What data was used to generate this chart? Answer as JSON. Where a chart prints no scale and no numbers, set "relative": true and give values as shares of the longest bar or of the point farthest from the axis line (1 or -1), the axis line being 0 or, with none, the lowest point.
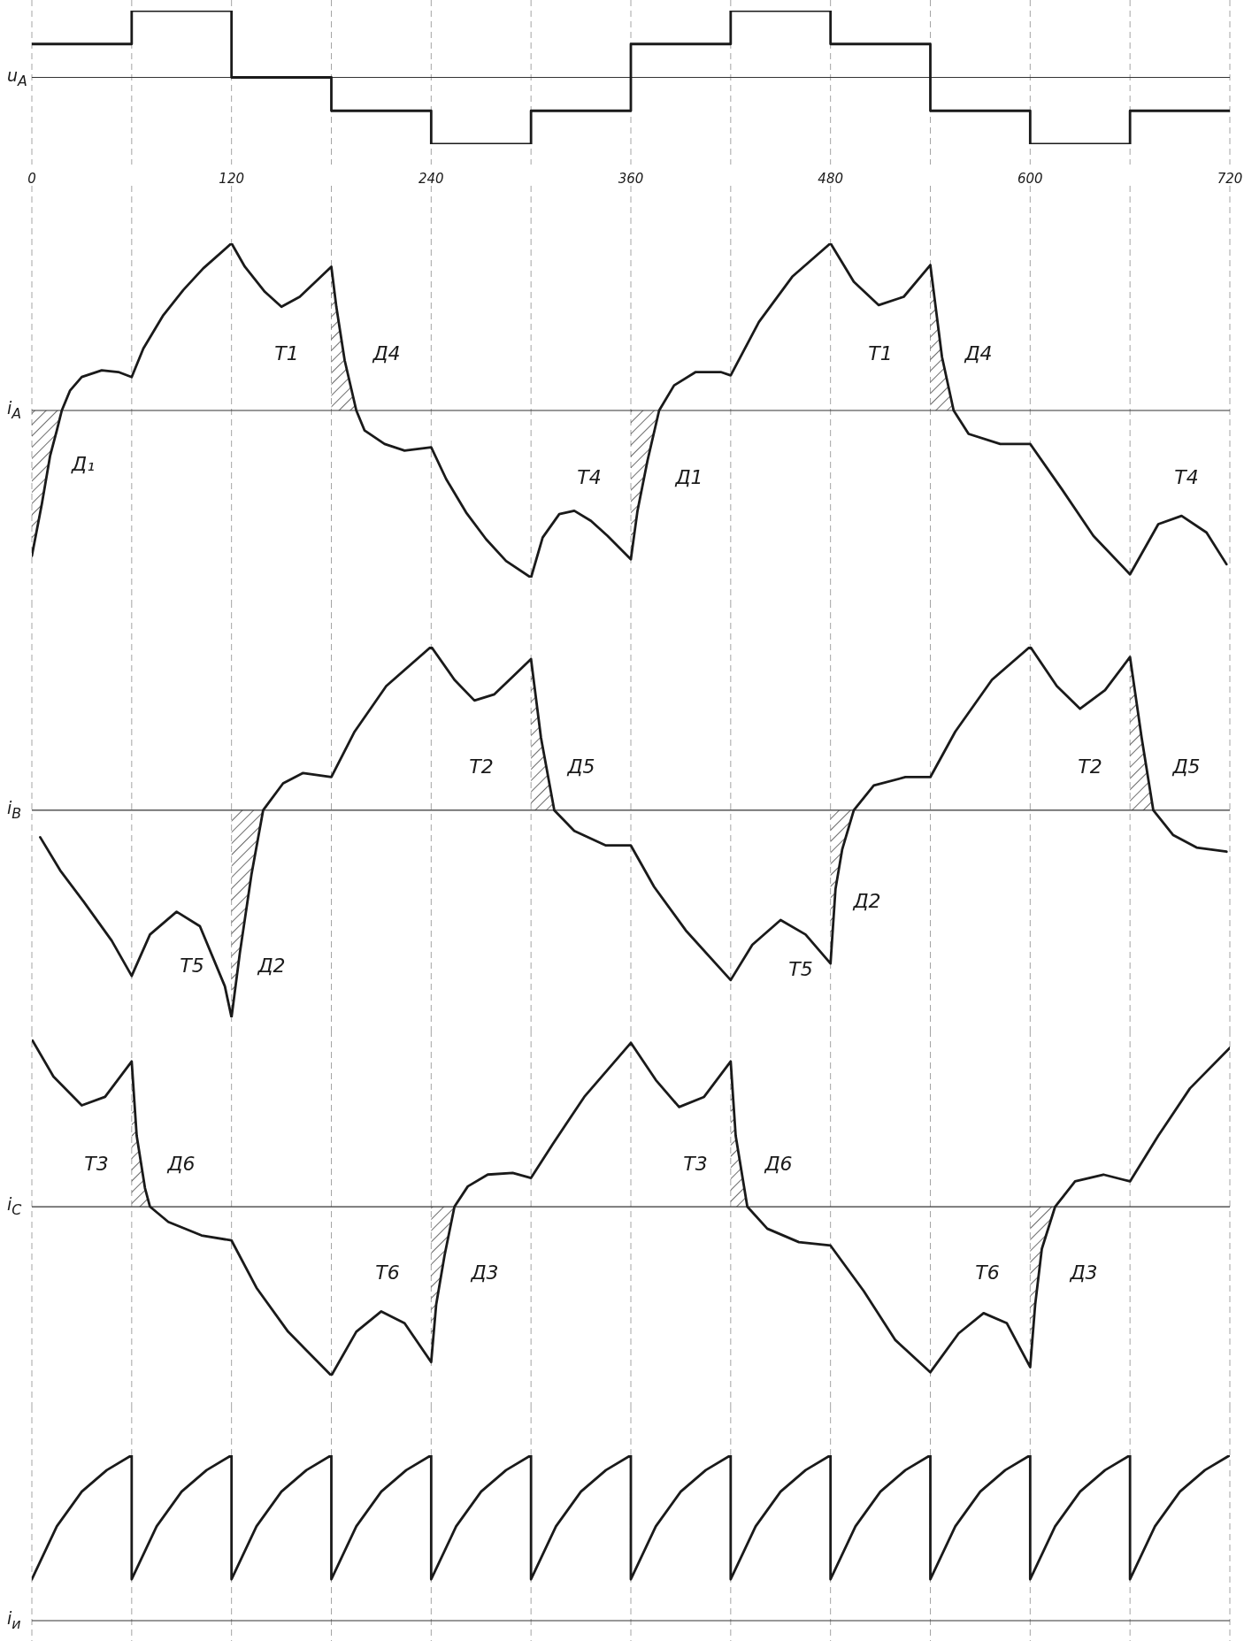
{
  "chart_data": [
    {
      "type": "step",
      "ylabel": "u$_{A}$",
      "relative": true,
      "x": [
        0,
        60,
        120,
        180,
        240,
        300,
        360,
        420,
        480,
        540,
        600,
        660,
        720
      ],
      "series": [
        {
          "color": "#1a1a1a",
          "values": [
            0.5,
            1,
            0,
            -0.5,
            -1,
            -0.5,
            0.5,
            1,
            0.5,
            -0.5,
            -1,
            -0.5,
            -0.5
          ]
        }
      ],
      "xlim": [
        0,
        720
      ],
      "xticks": [
        0,
        {
          "value": 60,
          "label": null
        },
        120,
        {
          "value": 180,
          "label": null
        },
        240,
        {
          "value": 300,
          "label": null
        },
        360,
        {
          "value": 420,
          "label": null
        },
        480,
        {
          "value": 540,
          "label": null
        },
        600,
        {
          "value": 660,
          "label": null
        },
        720
      ],
      "grid": "x",
      "tick_labels": "x"
    },
    {
      "type": "line",
      "ylabel": "i$_{A}$",
      "relative": true,
      "x": [
        0,
        6,
        11,
        15,
        18,
        23,
        30,
        42,
        52,
        60,
        67,
        79,
        91,
        103,
        120,
        128,
        140,
        150,
        161,
        180,
        183,
        188,
        195,
        200,
        212,
        224,
        240,
        249,
        261,
        273,
        285,
        300,
        307,
        317,
        326,
        336,
        346,
        360,
        364,
        370,
        377,
        386,
        399,
        414,
        420,
        437,
        457,
        480,
        494,
        509,
        524,
        540,
        547,
        554,
        563,
        582,
        600,
        619,
        638,
        660,
        677,
        691,
        706,
        718
      ],
      "series": [
        {
          "color": "#1a1a1a",
          "values": [
            -0.87,
            -0.56,
            -0.27,
            -0.12,
            0,
            0.12,
            0.2,
            0.24,
            0.23,
            0.2,
            0.37,
            0.57,
            0.72,
            0.85,
            1,
            0.86,
            0.71,
            0.62,
            0.68,
            0.86,
            0.62,
            0.3,
            0,
            -0.12,
            -0.2,
            -0.24,
            -0.22,
            -0.41,
            -0.61,
            -0.77,
            -0.9,
            -1,
            -0.76,
            -0.62,
            -0.6,
            -0.66,
            -0.75,
            -0.89,
            -0.6,
            -0.3,
            0,
            0.15,
            0.23,
            0.23,
            0.21,
            0.53,
            0.8,
            1,
            0.77,
            0.63,
            0.68,
            0.87,
            0.32,
            0,
            -0.14,
            -0.2,
            -0.2,
            -0.47,
            -0.75,
            -0.98,
            -0.68,
            -0.63,
            -0.73,
            -0.92
          ]
        },
        {
          "type": "area",
          "color": "#1a1a1a",
          "values": [
            -0.87,
            -0.56,
            -0.27,
            -0.12,
            0,
            null,
            null,
            null,
            null,
            null,
            null,
            null,
            null,
            null,
            null,
            null,
            null,
            null,
            null,
            0.86,
            0.62,
            0.3,
            0,
            null,
            null,
            null,
            null,
            null,
            null,
            null,
            null,
            null,
            null,
            null,
            null,
            null,
            null,
            -0.89,
            -0.6,
            -0.3,
            0,
            null,
            null,
            null,
            null,
            null,
            null,
            null,
            null,
            null,
            null,
            0.87,
            0.32,
            0,
            null,
            null,
            null,
            null,
            null,
            null,
            null,
            null,
            null,
            null
          ]
        }
      ],
      "xlim": [
        0,
        720
      ],
      "xticks": [
        0,
        {
          "value": 60,
          "label": null
        },
        120,
        {
          "value": 180,
          "label": null
        },
        240,
        {
          "value": 300,
          "label": null
        },
        360,
        {
          "value": 420,
          "label": null
        },
        480,
        {
          "value": 540,
          "label": null
        },
        600,
        {
          "value": 660,
          "label": null
        },
        720
      ],
      "grid": "x",
      "tick_labels": false,
      "annotations": [
        "Т1",
        "Д4",
        "Д₁",
        "Т4",
        "Д1",
        "Т1",
        "Д4",
        "Т4"
      ]
    },
    {
      "type": "line",
      "ylabel": "i$_{B}$",
      "relative": true,
      "x": [
        5,
        17,
        31,
        48,
        60,
        71,
        87,
        101,
        116,
        120,
        125,
        132,
        139,
        151,
        163,
        180,
        194,
        213,
        240,
        254,
        266,
        278,
        300,
        306,
        314,
        326,
        345,
        360,
        374,
        393,
        420,
        433,
        450,
        465,
        480,
        483,
        487,
        494,
        506,
        525,
        540,
        555,
        577,
        600,
        616,
        630,
        645,
        660,
        667,
        674,
        686,
        700,
        718
      ],
      "series": [
        {
          "color": "#1a1a1a",
          "values": [
            -0.13,
            -0.29,
            -0.44,
            -0.63,
            -0.8,
            -0.6,
            -0.49,
            -0.56,
            -0.85,
            -1,
            -0.69,
            -0.31,
            0,
            0.13,
            0.18,
            0.16,
            0.38,
            0.6,
            0.79,
            0.63,
            0.53,
            0.56,
            0.73,
            0.35,
            0,
            -0.1,
            -0.17,
            -0.17,
            -0.37,
            -0.58,
            -0.82,
            -0.65,
            -0.53,
            -0.6,
            -0.74,
            -0.38,
            -0.19,
            0,
            0.12,
            0.16,
            0.16,
            0.38,
            0.63,
            0.79,
            0.6,
            0.49,
            0.58,
            0.74,
            0.35,
            0,
            -0.12,
            -0.18,
            -0.2
          ]
        },
        {
          "type": "area",
          "color": "#1a1a1a",
          "values": [
            null,
            null,
            null,
            null,
            null,
            null,
            null,
            null,
            null,
            -1,
            -0.69,
            -0.31,
            0,
            null,
            null,
            null,
            null,
            null,
            null,
            null,
            null,
            null,
            0.73,
            0.35,
            0,
            null,
            null,
            null,
            null,
            null,
            null,
            null,
            null,
            null,
            -0.74,
            -0.38,
            -0.19,
            0,
            null,
            null,
            null,
            null,
            null,
            null,
            null,
            null,
            null,
            0.74,
            0.35,
            0,
            null,
            null,
            null
          ]
        }
      ],
      "xlim": [
        0,
        720
      ],
      "xticks": [
        0,
        {
          "value": 60,
          "label": null
        },
        120,
        {
          "value": 180,
          "label": null
        },
        240,
        {
          "value": 300,
          "label": null
        },
        360,
        {
          "value": 420,
          "label": null
        },
        480,
        {
          "value": 540,
          "label": null
        },
        600,
        {
          "value": 660,
          "label": null
        },
        720
      ],
      "grid": "x",
      "tick_labels": false,
      "annotations": [
        "Т5",
        "Д2",
        "Т2",
        "Д5",
        "Т5",
        "Д2",
        "Т2",
        "Д5"
      ]
    },
    {
      "type": "line",
      "ylabel": "i$_{C}$",
      "relative": true,
      "x": [
        0,
        13,
        30,
        44,
        60,
        63,
        68,
        71,
        82,
        102,
        120,
        135,
        154,
        180,
        195,
        210,
        224,
        240,
        243,
        248,
        254,
        262,
        274,
        289,
        300,
        313,
        332,
        360,
        375,
        389,
        404,
        420,
        423,
        430,
        442,
        461,
        480,
        500,
        519,
        540,
        557,
        572,
        586,
        600,
        603,
        607,
        615,
        627,
        644,
        660,
        677,
        696,
        720
      ],
      "series": [
        {
          "color": "#1a1a1a",
          "values": [
            0.99,
            0.77,
            0.6,
            0.65,
            0.86,
            0.42,
            0.11,
            0,
            -0.09,
            -0.17,
            -0.2,
            -0.48,
            -0.74,
            -1,
            -0.74,
            -0.62,
            -0.69,
            -0.92,
            -0.58,
            -0.29,
            0,
            0.12,
            0.19,
            0.2,
            0.17,
            0.37,
            0.65,
            0.97,
            0.75,
            0.59,
            0.65,
            0.86,
            0.42,
            0,
            -0.13,
            -0.21,
            -0.23,
            -0.5,
            -0.79,
            -0.98,
            -0.75,
            -0.63,
            -0.69,
            -0.95,
            -0.58,
            -0.25,
            0,
            0.15,
            0.19,
            0.15,
            0.42,
            0.7,
            0.94
          ]
        },
        {
          "type": "area",
          "color": "#1a1a1a",
          "values": [
            null,
            null,
            null,
            null,
            0.86,
            0.42,
            0.11,
            0,
            null,
            null,
            null,
            null,
            null,
            null,
            null,
            null,
            null,
            -0.92,
            -0.58,
            -0.29,
            0,
            null,
            null,
            null,
            null,
            null,
            null,
            null,
            null,
            null,
            null,
            0.86,
            0.42,
            0,
            null,
            null,
            null,
            null,
            null,
            null,
            null,
            null,
            null,
            -0.95,
            -0.58,
            -0.25,
            0,
            null,
            null,
            null,
            null,
            null,
            null
          ]
        }
      ],
      "xlim": [
        0,
        720
      ],
      "xticks": [
        0,
        {
          "value": 60,
          "label": null
        },
        120,
        {
          "value": 180,
          "label": null
        },
        240,
        {
          "value": 300,
          "label": null
        },
        360,
        {
          "value": 420,
          "label": null
        },
        480,
        {
          "value": 540,
          "label": null
        },
        600,
        {
          "value": 660,
          "label": null
        },
        720
      ],
      "grid": "x",
      "tick_labels": false,
      "annotations": [
        "Т3",
        "Д6",
        "Т6",
        "Д3",
        "Т3",
        "Д6",
        "Т6",
        "Д3"
      ]
    },
    {
      "type": "line",
      "ylabel": "i$_{и}$",
      "relative": true,
      "x": [
        0,
        15,
        30,
        45,
        60,
        60,
        75,
        90,
        105,
        120,
        120,
        135,
        150,
        165,
        180,
        180,
        195,
        210,
        225,
        240,
        240,
        255,
        270,
        285,
        300,
        300,
        315,
        330,
        345,
        360,
        360,
        375,
        390,
        405,
        420,
        420,
        435,
        450,
        465,
        480,
        480,
        495,
        510,
        525,
        540,
        540,
        555,
        570,
        585,
        600,
        600,
        615,
        630,
        645,
        660,
        660,
        675,
        690,
        705,
        720
      ],
      "series": [
        {
          "color": "#1a1a1a",
          "values": [
            0.25,
            0.57,
            0.78,
            0.91,
            1,
            0.25,
            0.57,
            0.78,
            0.91,
            1,
            0.25,
            0.57,
            0.78,
            0.91,
            1,
            0.25,
            0.57,
            0.78,
            0.91,
            1,
            0.25,
            0.57,
            0.78,
            0.91,
            1,
            0.25,
            0.57,
            0.78,
            0.91,
            1,
            0.25,
            0.57,
            0.78,
            0.91,
            1,
            0.25,
            0.57,
            0.78,
            0.91,
            1,
            0.25,
            0.57,
            0.78,
            0.91,
            1,
            0.25,
            0.57,
            0.78,
            0.91,
            1,
            0.25,
            0.57,
            0.78,
            0.91,
            1,
            0.25,
            0.57,
            0.78,
            0.91,
            1
          ]
        }
      ],
      "xlim": [
        0,
        720
      ],
      "xticks": [
        0,
        {
          "value": 60,
          "label": null
        },
        120,
        {
          "value": 180,
          "label": null
        },
        240,
        {
          "value": 300,
          "label": null
        },
        360,
        {
          "value": 420,
          "label": null
        },
        480,
        {
          "value": 540,
          "label": null
        },
        600,
        {
          "value": 660,
          "label": null
        },
        720
      ],
      "grid": "x",
      "tick_labels": false
    }
  ]
}
